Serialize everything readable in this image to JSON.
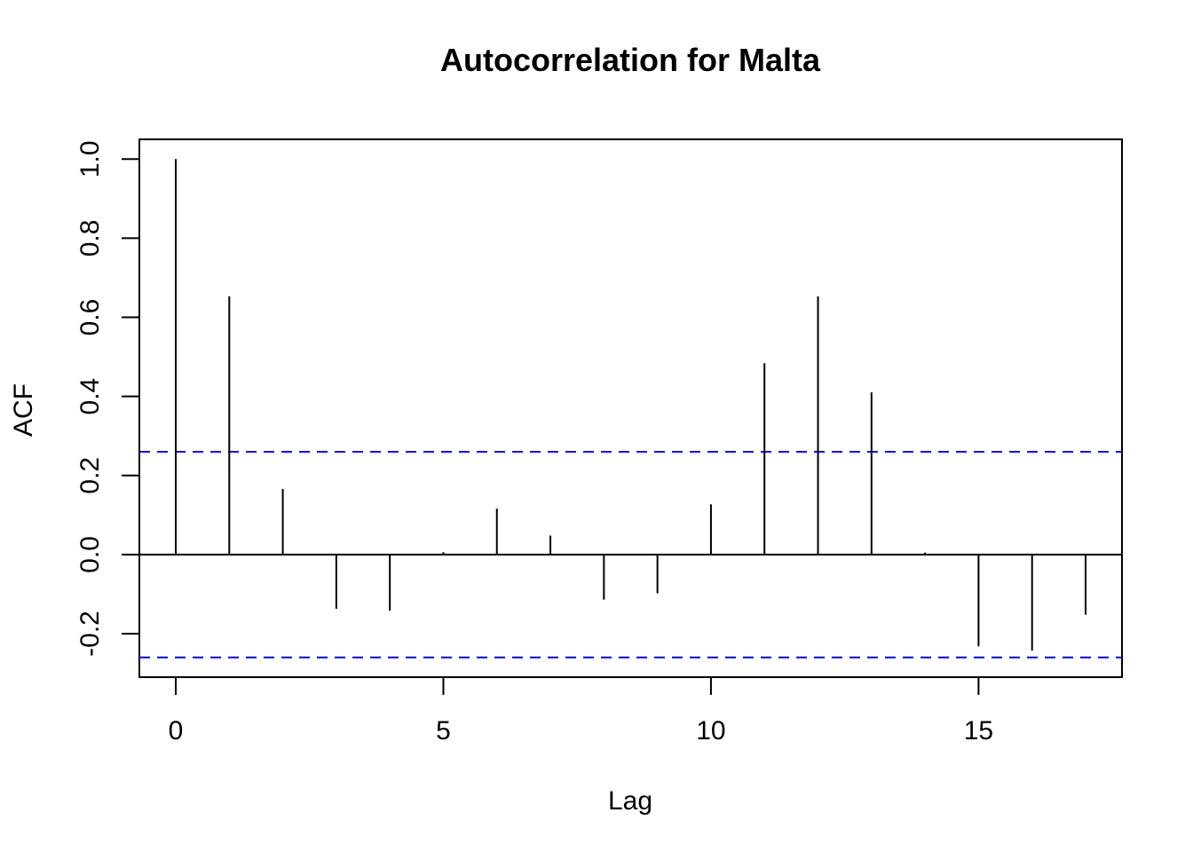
{
  "chart_data": {
    "type": "bar",
    "title": "Autocorrelation for Malta",
    "xlabel": "Lag",
    "ylabel": "ACF",
    "xlim": [
      -0.68,
      17.68
    ],
    "ylim": [
      -0.31,
      1.05
    ],
    "x_ticks": [
      0,
      5,
      10,
      15
    ],
    "y_ticks": [
      -0.2,
      0.0,
      0.2,
      0.4,
      0.6,
      0.8,
      1.0
    ],
    "y_tick_labels": [
      "-0.2",
      "0.0",
      "0.2",
      "0.4",
      "0.6",
      "0.8",
      "1.0"
    ],
    "lags": [
      0,
      1,
      2,
      3,
      4,
      5,
      6,
      7,
      8,
      9,
      10,
      11,
      12,
      13,
      14,
      15,
      16,
      17
    ],
    "values": [
      1.0,
      0.653,
      0.166,
      -0.137,
      -0.142,
      0.006,
      0.116,
      0.048,
      -0.114,
      -0.098,
      0.127,
      0.484,
      0.653,
      0.41,
      0.005,
      -0.232,
      -0.243,
      -0.152
    ],
    "confidence_bound": 0.26,
    "confidence_color": "#0000ff",
    "bar_color": "#000000",
    "grid": false
  }
}
